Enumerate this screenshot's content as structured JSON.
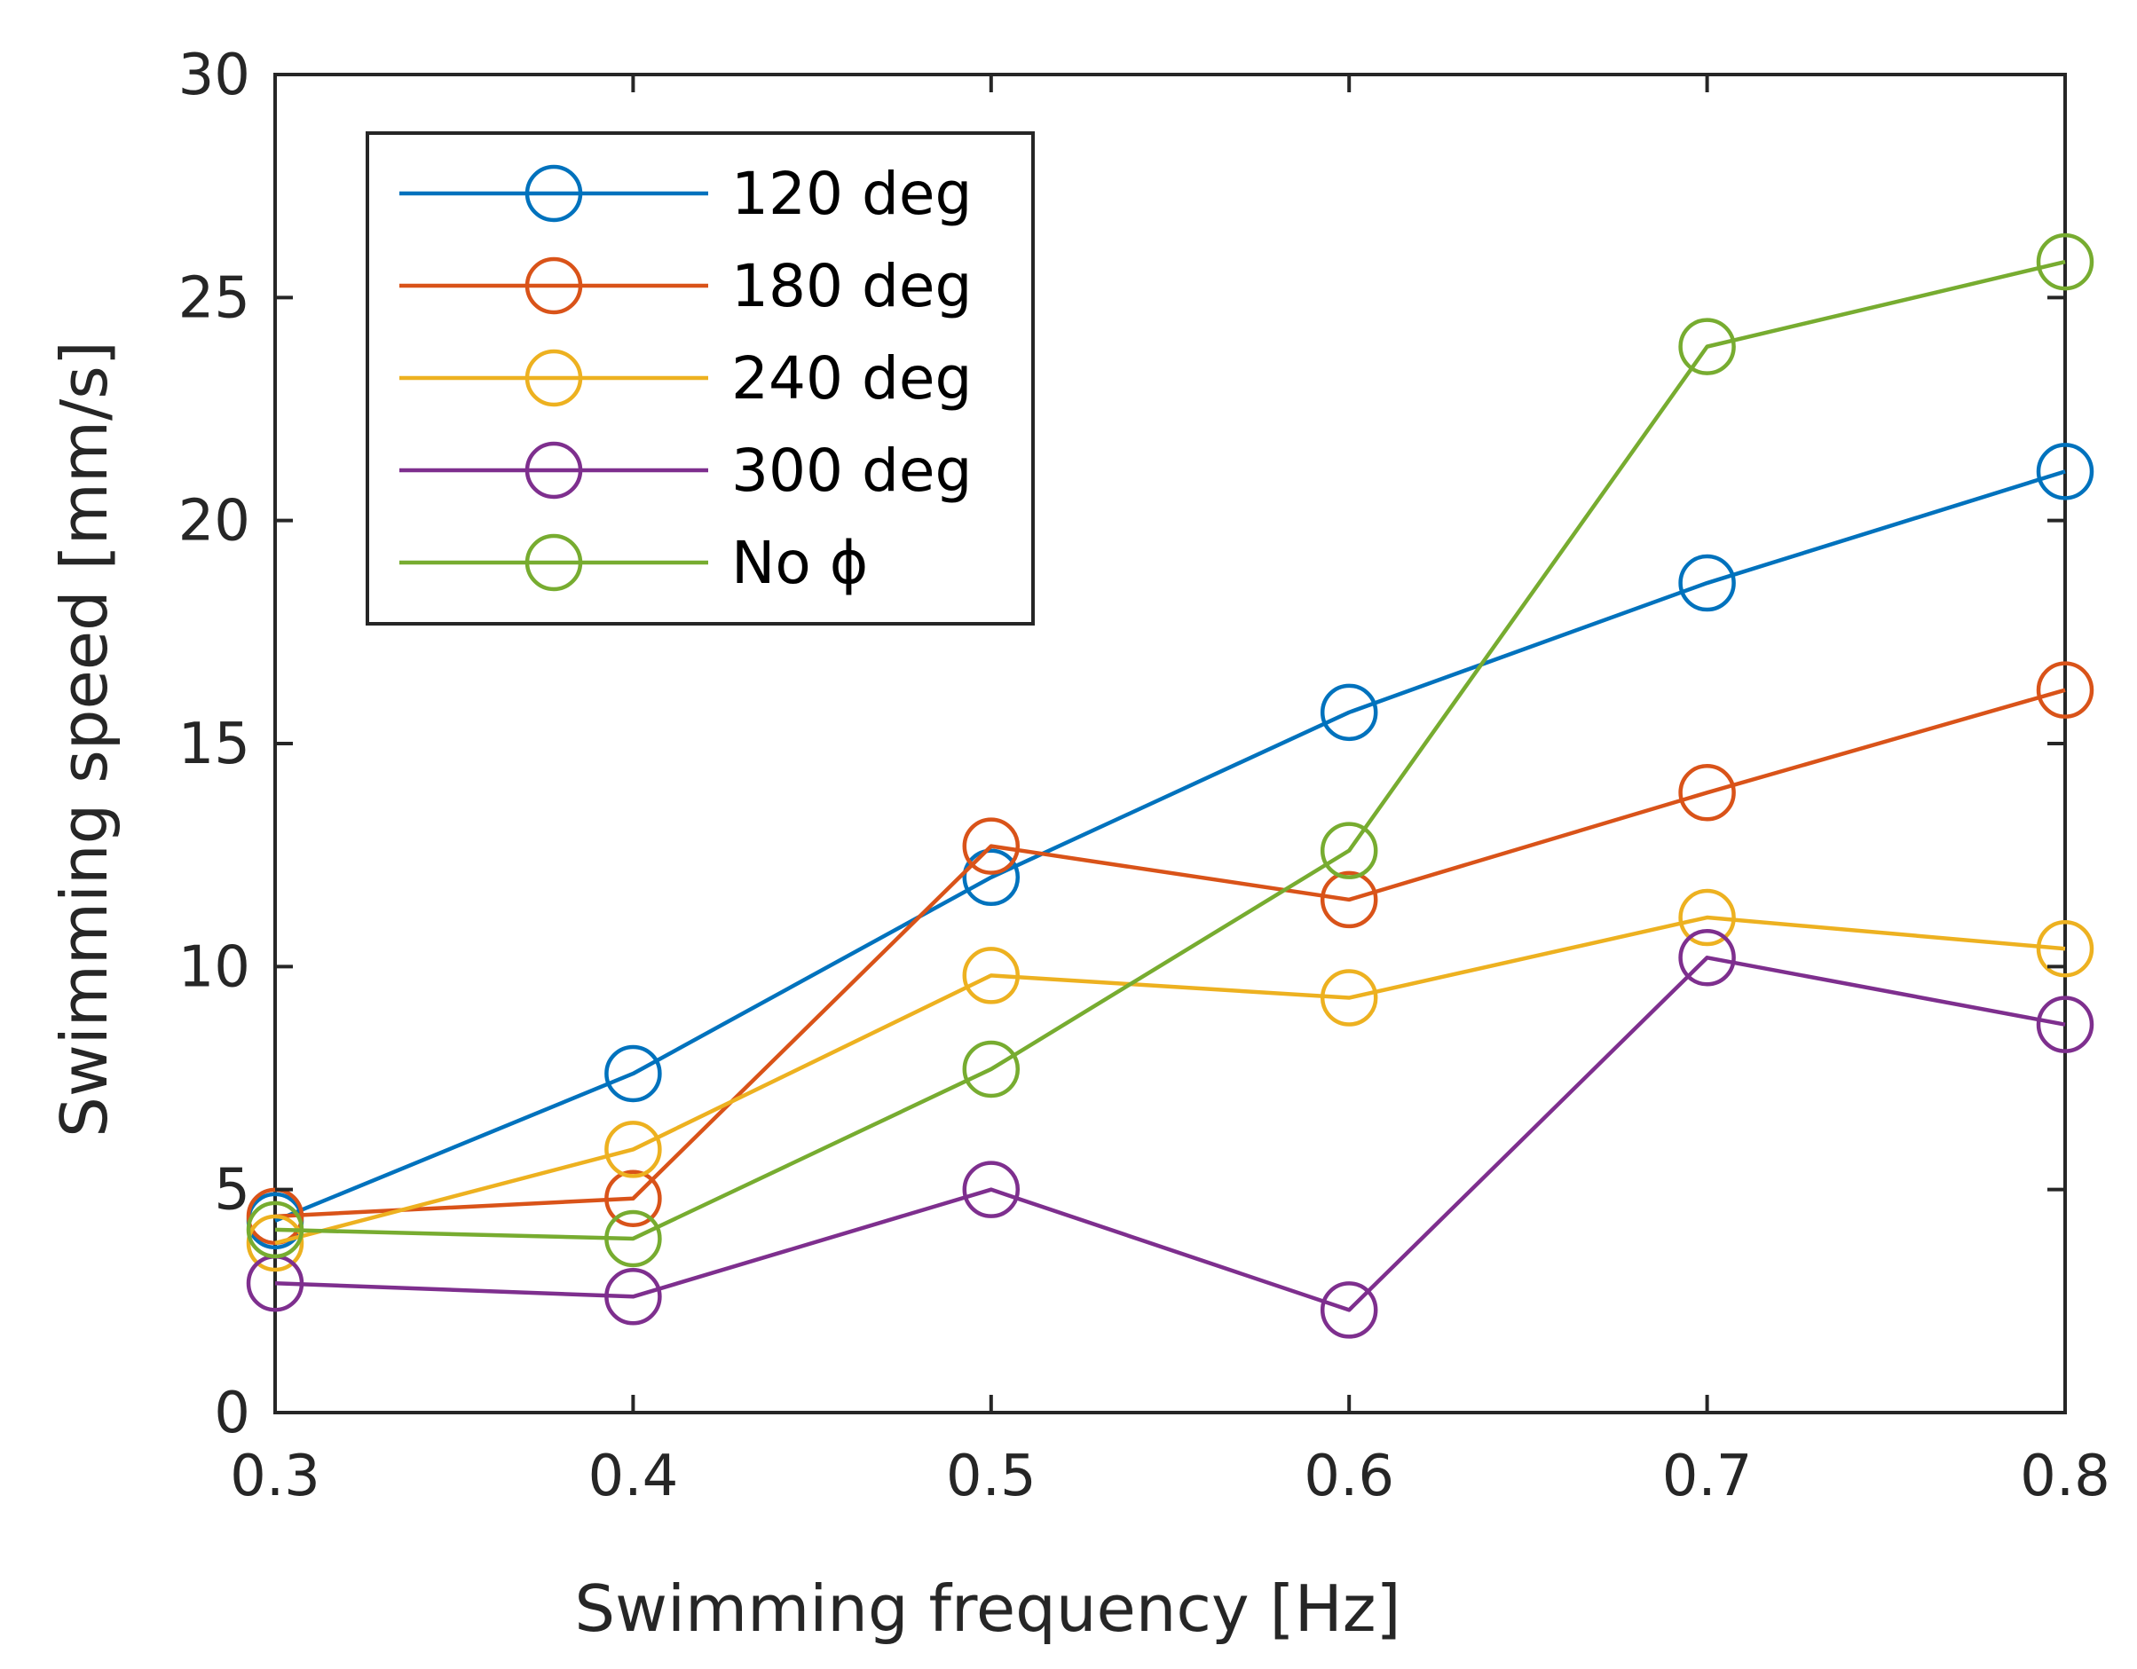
{
  "chart_data": {
    "type": "line",
    "title": "",
    "xlabel": "Swimming frequency [Hz]",
    "ylabel": "Swimming speed [mm/s]",
    "x": [
      0.3,
      0.4,
      0.5,
      0.6,
      0.7,
      0.8
    ],
    "xlim": [
      0.3,
      0.8
    ],
    "ylim": [
      0,
      30
    ],
    "xticks": [
      "0.3",
      "0.4",
      "0.5",
      "0.6",
      "0.7",
      "0.8"
    ],
    "xtick_values": [
      0.3,
      0.4,
      0.5,
      0.6,
      0.7,
      0.8
    ],
    "yticks": [
      "0",
      "5",
      "10",
      "15",
      "20",
      "25",
      "30"
    ],
    "ytick_values": [
      0,
      5,
      10,
      15,
      20,
      25,
      30
    ],
    "grid": false,
    "legend_position": "top-left",
    "marker": "open-circle",
    "series": [
      {
        "name": "120 deg",
        "color": "#0072BD",
        "values": [
          4.3,
          7.6,
          12.0,
          15.7,
          18.6,
          21.1
        ]
      },
      {
        "name": "180 deg",
        "color": "#D95319",
        "values": [
          4.4,
          4.8,
          12.7,
          11.5,
          13.9,
          16.2
        ]
      },
      {
        "name": "240 deg",
        "color": "#EDB120",
        "values": [
          3.8,
          5.9,
          9.8,
          9.3,
          11.1,
          10.4
        ]
      },
      {
        "name": "300 deg",
        "color": "#7E2F8E",
        "values": [
          2.9,
          2.6,
          5.0,
          2.3,
          10.2,
          8.7
        ]
      },
      {
        "name": "No ϕ",
        "color": "#77AC30",
        "values": [
          4.1,
          3.9,
          7.7,
          12.6,
          23.9,
          25.8
        ]
      }
    ]
  }
}
